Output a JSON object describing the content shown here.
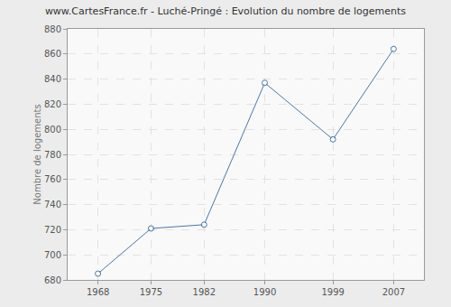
{
  "chart_data": {
    "type": "line",
    "title": "www.CartesFrance.fr - Luché-Pringé : Evolution du nombre de logements",
    "y_label": "Nombre de logements",
    "x": [
      1968,
      1975,
      1982,
      1990,
      1999,
      2007
    ],
    "values": [
      685,
      721,
      724,
      837,
      792,
      864
    ],
    "color": "#4a78a8",
    "marker": "circle",
    "xlim": [
      1964,
      2011
    ],
    "xticks": [
      1968,
      1975,
      1982,
      1990,
      1999,
      2007
    ],
    "ylim": [
      680,
      880
    ],
    "yticks": [
      680,
      700,
      720,
      740,
      760,
      780,
      800,
      820,
      840,
      860,
      880
    ],
    "grid": true
  }
}
